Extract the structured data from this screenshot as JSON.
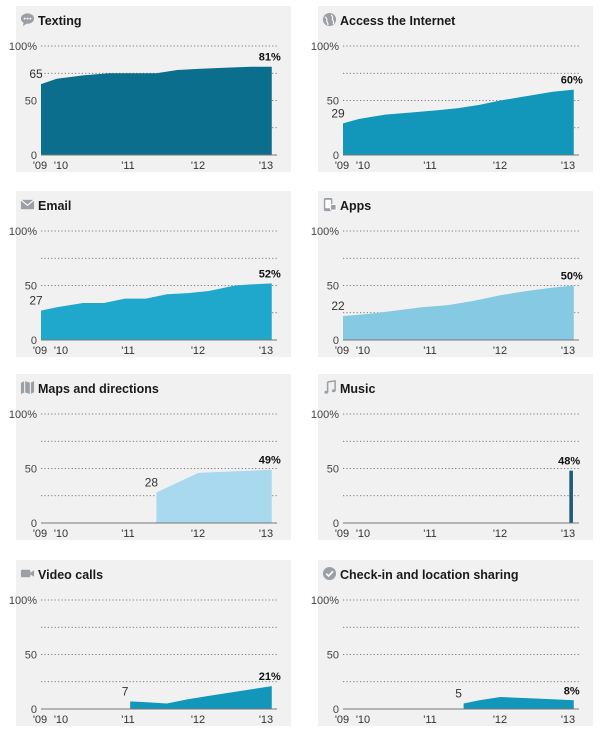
{
  "colors": {
    "panel_bg": "#f1f1f1",
    "dark_teal": "#0a6e8c",
    "teal": "#1296b9",
    "mid_blue": "#20a8cc",
    "sky": "#86c9e3",
    "pale_sky": "#a9d9ee",
    "navy_bar": "#1a5d7b",
    "icon_grey": "#9aa0a6"
  },
  "x_ticks": [
    "'09",
    "'10",
    "'11",
    "'12",
    "'13"
  ],
  "y_ticks": [
    "0",
    "50",
    "100%"
  ],
  "chart_data": [
    {
      "type": "area",
      "title": "Texting",
      "icon": "speech-bubble-icon",
      "color": "#0a6e8c",
      "x_range": [
        2009.0,
        2013.5
      ],
      "ylim": [
        0,
        100
      ],
      "start_label": "65",
      "end_label": "81%",
      "points": [
        [
          2009.0,
          65
        ],
        [
          2009.3,
          70
        ],
        [
          2009.8,
          73
        ],
        [
          2010.3,
          75
        ],
        [
          2010.8,
          75
        ],
        [
          2011.2,
          75
        ],
        [
          2011.6,
          78
        ],
        [
          2012.0,
          79
        ],
        [
          2012.5,
          80
        ],
        [
          2013.0,
          81
        ],
        [
          2013.4,
          81
        ]
      ]
    },
    {
      "type": "area",
      "title": "Access the Internet",
      "icon": "globe-icon",
      "color": "#1296b9",
      "x_range": [
        2009.0,
        2013.5
      ],
      "ylim": [
        0,
        100
      ],
      "start_label": "29",
      "end_label": "60%",
      "points": [
        [
          2009.0,
          29
        ],
        [
          2009.3,
          33
        ],
        [
          2009.8,
          37
        ],
        [
          2010.3,
          39
        ],
        [
          2010.8,
          41
        ],
        [
          2011.2,
          43
        ],
        [
          2011.6,
          46
        ],
        [
          2012.0,
          50
        ],
        [
          2012.5,
          54
        ],
        [
          2013.0,
          58
        ],
        [
          2013.4,
          60
        ]
      ]
    },
    {
      "type": "area",
      "title": "Email",
      "icon": "envelope-icon",
      "color": "#20a8cc",
      "x_range": [
        2009.0,
        2013.5
      ],
      "ylim": [
        0,
        100
      ],
      "start_label": "27",
      "end_label": "52%",
      "points": [
        [
          2009.0,
          27
        ],
        [
          2009.3,
          30
        ],
        [
          2009.8,
          34
        ],
        [
          2010.2,
          34
        ],
        [
          2010.6,
          38
        ],
        [
          2011.0,
          38
        ],
        [
          2011.4,
          42
        ],
        [
          2011.8,
          43
        ],
        [
          2012.2,
          45
        ],
        [
          2012.7,
          50
        ],
        [
          2013.0,
          51
        ],
        [
          2013.4,
          52
        ]
      ]
    },
    {
      "type": "area",
      "title": "Apps",
      "icon": "phone-apps-icon",
      "color": "#86c9e3",
      "x_range": [
        2009.0,
        2013.5
      ],
      "ylim": [
        0,
        100
      ],
      "start_label": "22",
      "end_label": "50%",
      "points": [
        [
          2009.0,
          22
        ],
        [
          2009.5,
          24
        ],
        [
          2010.0,
          27
        ],
        [
          2010.5,
          30
        ],
        [
          2011.0,
          32
        ],
        [
          2011.5,
          36
        ],
        [
          2012.0,
          41
        ],
        [
          2012.5,
          45
        ],
        [
          2013.0,
          48
        ],
        [
          2013.4,
          50
        ]
      ]
    },
    {
      "type": "area",
      "title": "Maps and directions",
      "icon": "map-icon",
      "color": "#a9d9ee",
      "x_range": [
        2009.0,
        2013.5
      ],
      "ylim": [
        0,
        100
      ],
      "start_label": "28",
      "end_label": "49%",
      "points": [
        [
          2011.2,
          28
        ],
        [
          2011.6,
          37
        ],
        [
          2012.0,
          46
        ],
        [
          2012.5,
          47
        ],
        [
          2013.0,
          48
        ],
        [
          2013.4,
          49
        ]
      ]
    },
    {
      "type": "bar",
      "title": "Music",
      "icon": "music-note-icon",
      "color": "#1a5d7b",
      "x_range": [
        2009.0,
        2013.5
      ],
      "ylim": [
        0,
        100
      ],
      "start_label": "",
      "end_label": "48%",
      "points": [
        [
          2013.35,
          48
        ]
      ]
    },
    {
      "type": "area",
      "title": "Video calls",
      "icon": "video-camera-icon",
      "color": "#1296b9",
      "x_range": [
        2009.0,
        2013.5
      ],
      "ylim": [
        0,
        100
      ],
      "start_label": "7",
      "end_label": "21%",
      "points": [
        [
          2010.7,
          7
        ],
        [
          2011.1,
          6
        ],
        [
          2011.4,
          5
        ],
        [
          2011.8,
          9
        ],
        [
          2012.2,
          12
        ],
        [
          2012.6,
          15
        ],
        [
          2013.0,
          18
        ],
        [
          2013.4,
          21
        ]
      ]
    },
    {
      "type": "area",
      "title": "Check-in and location sharing",
      "icon": "checkmark-icon",
      "color": "#1296b9",
      "x_range": [
        2009.0,
        2013.5
      ],
      "ylim": [
        0,
        100
      ],
      "start_label": "5",
      "end_label": "8%",
      "points": [
        [
          2011.3,
          5
        ],
        [
          2011.6,
          8
        ],
        [
          2012.0,
          11
        ],
        [
          2012.5,
          10
        ],
        [
          2013.0,
          9
        ],
        [
          2013.4,
          8
        ]
      ]
    }
  ]
}
